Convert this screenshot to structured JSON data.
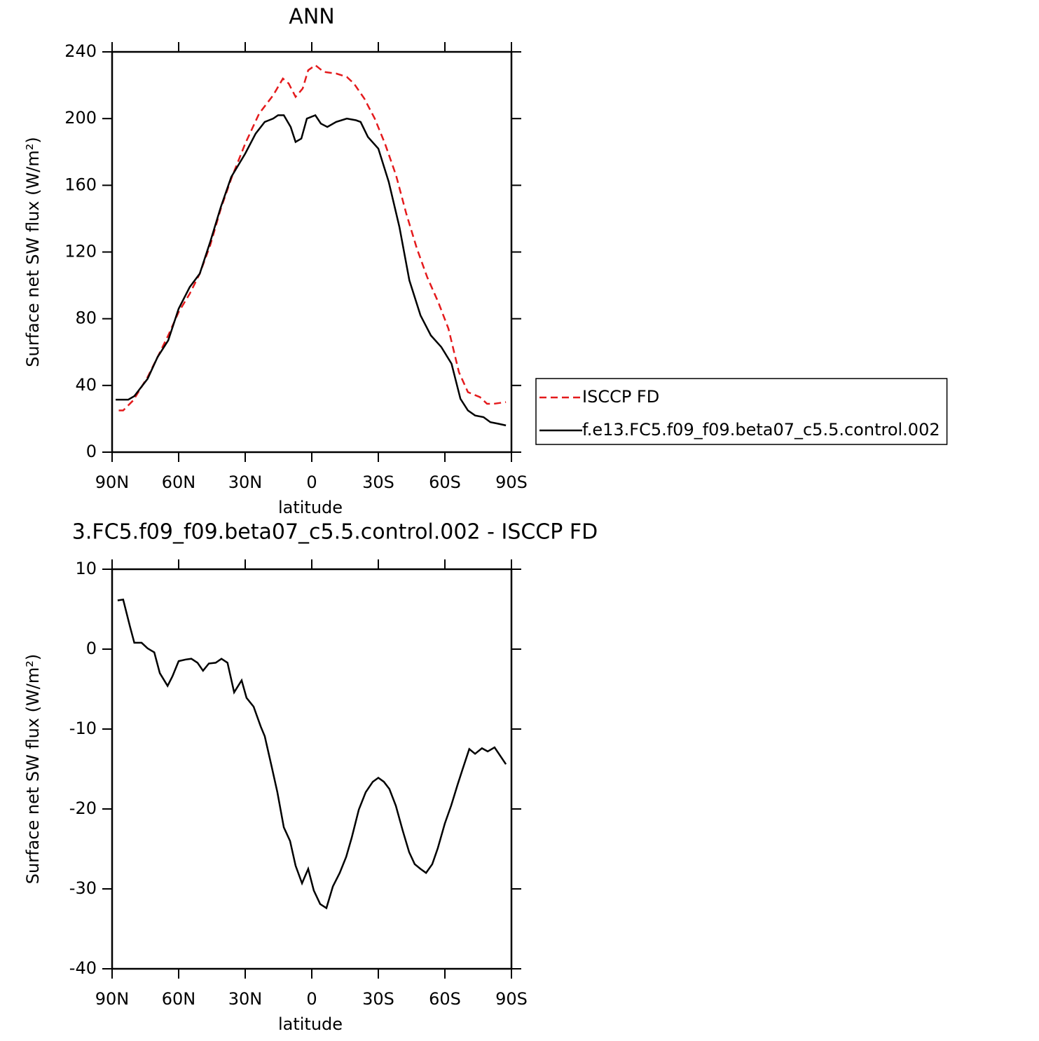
{
  "chart_data": [
    {
      "type": "line",
      "title": "ANN",
      "xlabel": "latitude",
      "ylabel": "Surface net SW flux (W/m²)",
      "xlim": [
        90,
        -90
      ],
      "ylim": [
        0,
        240
      ],
      "xticks": [
        {
          "value": 90,
          "label": "90N"
        },
        {
          "value": 60,
          "label": "60N"
        },
        {
          "value": 30,
          "label": "30N"
        },
        0,
        {
          "value": -30,
          "label": "30S"
        },
        {
          "value": -60,
          "label": "60S"
        },
        {
          "value": -90,
          "label": "90S"
        }
      ],
      "yticks": [
        0,
        40,
        80,
        120,
        160,
        200,
        240
      ],
      "legend": "right",
      "series": [
        {
          "name": "ISCCP FD",
          "color": "#e41a1c",
          "line_style": "dashed",
          "x": [
            87,
            85,
            80.5,
            74,
            69.5,
            64.7,
            60,
            55,
            50.5,
            45.8,
            41,
            36.3,
            30,
            23.7,
            17.4,
            13,
            10.4,
            7.3,
            4.1,
            1.6,
            -1.6,
            -5.4,
            -11,
            -15.8,
            -19,
            -23.7,
            -28.4,
            -33,
            -38,
            -42.6,
            -47.4,
            -52,
            -57,
            -61.6,
            -66.3,
            -70.4,
            -75.8,
            -79,
            -82,
            -87.5
          ],
          "values": [
            25,
            25,
            31,
            45,
            57,
            70,
            84,
            95,
            107,
            124,
            146,
            164,
            185,
            203,
            214,
            224,
            221,
            213,
            218,
            229,
            232,
            228,
            227,
            225,
            221,
            212,
            200,
            185,
            166,
            143,
            122,
            105,
            90,
            74,
            48,
            36,
            33,
            29,
            29,
            30
          ]
        },
        {
          "name": "f.e13.FC5.f09_f09.beta07_c5.5.control.002",
          "color": "#000000",
          "line_style": "solid",
          "x": [
            88.4,
            82.7,
            80,
            74,
            69.5,
            64.7,
            60,
            55,
            50.5,
            45.8,
            41,
            36.3,
            30,
            25.3,
            21.2,
            17.4,
            15.2,
            12.6,
            9.5,
            7.3,
            4.7,
            2.2,
            -1.6,
            -4.1,
            -7,
            -11,
            -15.8,
            -19.9,
            -22,
            -25.3,
            -30,
            -34.7,
            -39.5,
            -44,
            -49,
            -53.7,
            -58.4,
            -63,
            -67,
            -70.4,
            -73.6,
            -77.4,
            -80.5,
            -84.3,
            -87.5
          ],
          "values": [
            31.5,
            31.5,
            33.6,
            44,
            57,
            67,
            86,
            99,
            107,
            126,
            147,
            165,
            179,
            191,
            198,
            200,
            202,
            202,
            195,
            186,
            188,
            200,
            202,
            197,
            195,
            198,
            200,
            199,
            198,
            189,
            182,
            162,
            135,
            103,
            82,
            70,
            63,
            53,
            32,
            25,
            22,
            21,
            18,
            17,
            16
          ]
        }
      ]
    },
    {
      "type": "line",
      "title": "3.FC5.f09_f09.beta07_c5.5.control.002 - ISCCP FD",
      "xlabel": "latitude",
      "ylabel": "Surface net SW flux (W/m²)",
      "xlim": [
        90,
        -90
      ],
      "ylim": [
        -40,
        10
      ],
      "xticks": [
        {
          "value": 90,
          "label": "90N"
        },
        {
          "value": 60,
          "label": "60N"
        },
        {
          "value": 30,
          "label": "30N"
        },
        0,
        {
          "value": -30,
          "label": "30S"
        },
        {
          "value": -60,
          "label": "60S"
        },
        {
          "value": -90,
          "label": "90S"
        }
      ],
      "yticks": [
        -40,
        -30,
        -20,
        -10,
        0,
        10
      ],
      "series": [
        {
          "color": "#000000",
          "line_style": "solid",
          "x": [
            87.5,
            85,
            82,
            80,
            76.7,
            74,
            71,
            68.5,
            65,
            62.8,
            60,
            56.8,
            54.3,
            51.5,
            49,
            46.4,
            43.3,
            40.7,
            38,
            35,
            31.6,
            29.4,
            26.2,
            23,
            21.2,
            18,
            15.5,
            12.6,
            9.8,
            7.3,
            4.4,
            1.6,
            -0.9,
            -3.8,
            -6.6,
            -9.5,
            -12.6,
            -15.5,
            -18,
            -21.2,
            -24.3,
            -27.5,
            -30,
            -32.5,
            -35,
            -37.9,
            -41,
            -43.9,
            -46.4,
            -49,
            -51.5,
            -54.3,
            -56.8,
            -60,
            -62.8,
            -65.7,
            -67.9,
            -71,
            -73.6,
            -76.7,
            -79.3,
            -82.4,
            -87.5
          ],
          "values": [
            6.1,
            6.2,
            2.9,
            0.8,
            0.8,
            0.1,
            -0.4,
            -3,
            -4.6,
            -3.4,
            -1.5,
            -1.3,
            -1.2,
            -1.7,
            -2.7,
            -1.8,
            -1.7,
            -1.2,
            -1.7,
            -5.4,
            -3.9,
            -6.1,
            -7.2,
            -9.7,
            -10.9,
            -14.8,
            -17.9,
            -22.3,
            -24,
            -27.1,
            -29.3,
            -27.5,
            -30.2,
            -31.9,
            -32.4,
            -29.7,
            -28,
            -26,
            -23.6,
            -20.1,
            -17.9,
            -16.6,
            -16.1,
            -16.6,
            -17.5,
            -19.6,
            -22.7,
            -25.4,
            -26.9,
            -27.5,
            -28,
            -26.9,
            -24.9,
            -21.8,
            -19.6,
            -17,
            -15.1,
            -12.5,
            -13.1,
            -12.4,
            -12.8,
            -12.3,
            -14.4
          ]
        }
      ]
    }
  ]
}
